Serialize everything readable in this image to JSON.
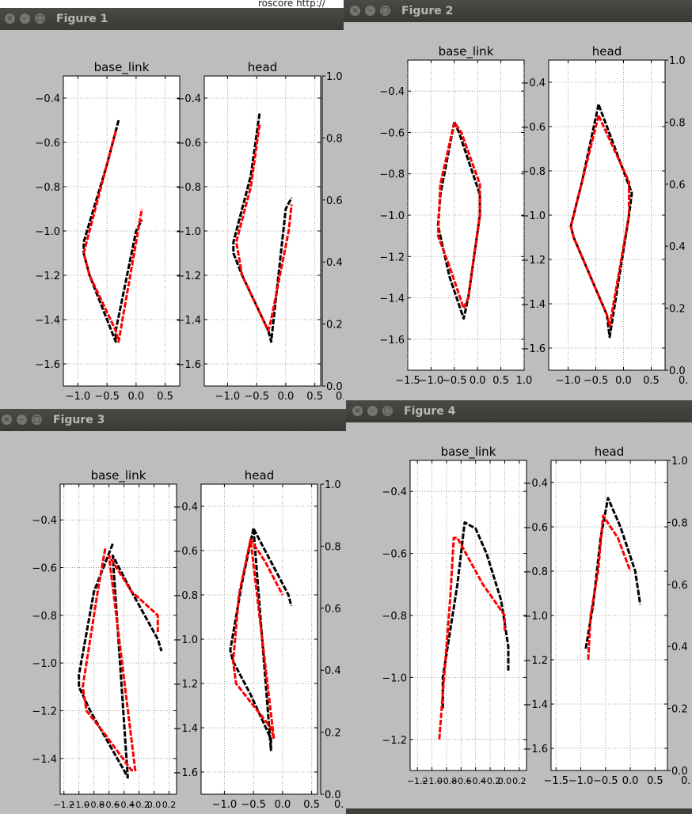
{
  "desktop": {
    "window_caption_fragment": "roscore http://"
  },
  "series_colors": {
    "measured": "#000000",
    "predicted": "#ff0000"
  },
  "icons": {
    "close": "close-icon",
    "minimize": "minimize-icon",
    "maximize": "maximize-icon"
  },
  "windows": [
    {
      "title": "Figure 1",
      "plots": [
        {
          "title": "base_link",
          "xticks": [
            "-1.0",
            "-0.5",
            "0.0",
            "0.5"
          ],
          "yticks": [
            "-0.4",
            "-0.6",
            "-0.8",
            "-1.0",
            "-1.2",
            "-1.4",
            "-1.6"
          ]
        },
        {
          "title": "head",
          "xticks": [
            "-1.0",
            "-0.5",
            "0.0",
            "0.5"
          ],
          "yticks": [
            "-0.4",
            "-0.6",
            "-0.8",
            "-1.0",
            "-1.2",
            "-1.4",
            "-1.6"
          ]
        }
      ],
      "right_axis_ticks": [
        "1.0",
        "0.8",
        "0.6",
        "0.4",
        "0.2",
        "0.0"
      ],
      "right_axis_xtick": "0."
    },
    {
      "title": "Figure 2",
      "plots": [
        {
          "title": "base_link",
          "xticks": [
            "-1.5",
            "-1.0",
            "-0.5",
            "0.0",
            "0.5",
            "1.0"
          ],
          "yticks": [
            "-0.4",
            "-0.6",
            "-0.8",
            "-1.0",
            "-1.2",
            "-1.4",
            "-1.6"
          ]
        },
        {
          "title": "head",
          "xticks": [
            "-1.0",
            "-0.5",
            "0.0",
            "0.5"
          ],
          "yticks": [
            "-0.4",
            "-0.6",
            "-0.8",
            "-1.0",
            "-1.2",
            "-1.4",
            "-1.6"
          ]
        }
      ],
      "right_axis_ticks": [
        "1.0",
        "0.8",
        "0.6",
        "0.4",
        "0.2",
        "0.0"
      ],
      "right_axis_xtick": "0."
    },
    {
      "title": "Figure 3",
      "plots": [
        {
          "title": "base_link",
          "xticks": [
            "-1.2",
            "-1.0",
            "-0.8",
            "-0.6",
            "-0.4",
            "-0.2",
            "0.0",
            "0.2"
          ],
          "yticks": [
            "-0.4",
            "-0.6",
            "-0.8",
            "-1.0",
            "-1.2",
            "-1.4"
          ]
        },
        {
          "title": "head",
          "xticks": [
            "-1.0",
            "-0.5",
            "0.0",
            "0.5"
          ],
          "yticks": [
            "-0.4",
            "-0.6",
            "-0.8",
            "-1.0",
            "-1.2",
            "-1.4",
            "-1.6"
          ]
        }
      ],
      "right_axis_ticks": [
        "1.0",
        "0.8",
        "0.6",
        "0.4",
        "0.2",
        "0.0"
      ],
      "right_axis_xtick": "0."
    },
    {
      "title": "Figure 4",
      "plots": [
        {
          "title": "base_link",
          "xticks": [
            "-1.2",
            "-1.0",
            "-0.8",
            "-0.6",
            "-0.4",
            "-0.2",
            "0.0",
            "0.2"
          ],
          "yticks": [
            "-0.4",
            "-0.6",
            "-0.8",
            "-1.0",
            "-1.2"
          ]
        },
        {
          "title": "head",
          "xticks": [
            "-1.5",
            "-1.0",
            "-0.5",
            "0.0",
            "0.5"
          ],
          "yticks": [
            "-0.4",
            "-0.6",
            "-0.8",
            "-1.0",
            "-1.2",
            "-1.4",
            "-1.6"
          ]
        }
      ],
      "right_axis_ticks": [
        "1.0",
        "0.8",
        "0.6",
        "0.4",
        "0.2",
        "0.0"
      ],
      "right_axis_xtick": "0."
    }
  ],
  "chart_data": [
    {
      "type": "line",
      "figure": "Figure 1",
      "title": "base_link",
      "xlim": [
        -1.25,
        0.75
      ],
      "ylim": [
        -1.7,
        -0.3
      ],
      "grid": true,
      "series": [
        {
          "color": "#000000",
          "x": [
            -0.3,
            -0.5,
            -0.9,
            -0.9,
            -0.8,
            -0.35,
            -0.35,
            0.0,
            0.1
          ],
          "y": [
            -0.5,
            -0.7,
            -1.05,
            -1.1,
            -1.2,
            -1.5,
            -1.45,
            -1.0,
            -0.95
          ]
        },
        {
          "color": "#ff0000",
          "x": [
            -0.35,
            -0.55,
            -0.9,
            -0.8,
            -0.35,
            -0.3,
            0.0,
            0.1
          ],
          "y": [
            -0.55,
            -0.75,
            -1.1,
            -1.2,
            -1.45,
            -1.5,
            -1.05,
            -0.9
          ]
        }
      ]
    },
    {
      "type": "line",
      "figure": "Figure 1",
      "title": "head",
      "xlim": [
        -1.4,
        0.6
      ],
      "ylim": [
        -1.7,
        -0.3
      ],
      "grid": true,
      "series": [
        {
          "color": "#000000",
          "x": [
            -0.45,
            -0.6,
            -0.9,
            -0.9,
            -0.75,
            -0.3,
            -0.25,
            0.0,
            0.1
          ],
          "y": [
            -0.47,
            -0.75,
            -1.05,
            -1.1,
            -1.2,
            -1.45,
            -1.5,
            -0.9,
            -0.85
          ]
        },
        {
          "color": "#ff0000",
          "x": [
            -0.45,
            -0.6,
            -0.85,
            -0.75,
            -0.3,
            -0.25,
            0.05,
            0.1
          ],
          "y": [
            -0.52,
            -0.8,
            -1.05,
            -1.2,
            -1.45,
            -1.4,
            -1.0,
            -0.88
          ]
        }
      ]
    },
    {
      "type": "line",
      "figure": "Figure 2",
      "title": "base_link",
      "xlim": [
        -1.5,
        1.0
      ],
      "ylim": [
        -1.75,
        -0.25
      ],
      "grid": true,
      "series": [
        {
          "color": "#000000",
          "x": [
            -0.5,
            -0.8,
            -0.85,
            -0.6,
            -0.3,
            -0.2,
            0.05,
            0.05,
            -0.4,
            -0.5
          ],
          "y": [
            -0.55,
            -0.9,
            -1.05,
            -1.3,
            -1.5,
            -1.4,
            -1.0,
            -0.9,
            -0.6,
            -0.55
          ]
        },
        {
          "color": "#ff0000",
          "x": [
            -0.5,
            -0.8,
            -0.85,
            -0.6,
            -0.3,
            -0.2,
            0.05,
            0.05,
            -0.35,
            -0.5
          ],
          "y": [
            -0.55,
            -0.85,
            -1.1,
            -1.25,
            -1.45,
            -1.4,
            -1.0,
            -0.85,
            -0.6,
            -0.55
          ]
        }
      ]
    },
    {
      "type": "line",
      "figure": "Figure 2",
      "title": "head",
      "xlim": [
        -1.35,
        0.75
      ],
      "ylim": [
        -1.7,
        -0.3
      ],
      "grid": true,
      "series": [
        {
          "color": "#000000",
          "x": [
            -0.45,
            -0.75,
            -0.95,
            -0.9,
            -0.3,
            -0.25,
            0.1,
            0.15,
            -0.45
          ],
          "y": [
            -0.5,
            -0.85,
            -1.05,
            -1.1,
            -1.45,
            -1.55,
            -1.0,
            -0.9,
            -0.5
          ]
        },
        {
          "color": "#ff0000",
          "x": [
            -0.45,
            -0.8,
            -0.95,
            -0.9,
            -0.3,
            -0.25,
            0.1,
            0.1,
            -0.45
          ],
          "y": [
            -0.55,
            -0.9,
            -1.05,
            -1.1,
            -1.45,
            -1.5,
            -1.0,
            -0.85,
            -0.55
          ]
        }
      ]
    },
    {
      "type": "line",
      "figure": "Figure 3",
      "title": "base_link",
      "xlim": [
        -1.25,
        0.3
      ],
      "ylim": [
        -1.55,
        -0.25
      ],
      "grid": true,
      "series": [
        {
          "color": "#000000",
          "x": [
            -0.55,
            -0.8,
            -1.0,
            -1.0,
            -0.85,
            -0.4,
            -0.35,
            -0.55,
            -0.3,
            0.05,
            0.1
          ],
          "y": [
            -0.5,
            -0.7,
            -1.05,
            -1.1,
            -1.2,
            -1.45,
            -1.48,
            -0.55,
            -0.7,
            -0.9,
            -0.95
          ]
        },
        {
          "color": "#ff0000",
          "x": [
            -0.65,
            -0.75,
            -0.95,
            -0.9,
            -0.65,
            -0.3,
            -0.25,
            -0.6,
            -0.3,
            0.05,
            0.05
          ],
          "y": [
            -0.52,
            -0.7,
            -1.1,
            -1.2,
            -1.3,
            -1.45,
            -1.45,
            -0.55,
            -0.7,
            -0.8,
            -0.87
          ]
        }
      ]
    },
    {
      "type": "line",
      "figure": "Figure 3",
      "title": "head",
      "xlim": [
        -1.4,
        0.6
      ],
      "ylim": [
        -1.7,
        -0.3
      ],
      "grid": true,
      "series": [
        {
          "color": "#000000",
          "x": [
            -0.5,
            -0.7,
            -0.9,
            -0.85,
            -0.55,
            -0.2,
            -0.2,
            -0.5,
            -0.2,
            0.1,
            0.15
          ],
          "y": [
            -0.5,
            -0.75,
            -1.05,
            -1.1,
            -1.25,
            -1.45,
            -1.5,
            -0.5,
            -0.65,
            -0.8,
            -0.85
          ]
        },
        {
          "color": "#ff0000",
          "x": [
            -0.55,
            -0.75,
            -0.85,
            -0.8,
            -0.5,
            -0.2,
            -0.15,
            -0.55,
            -0.3,
            0.0
          ],
          "y": [
            -0.55,
            -0.8,
            -1.1,
            -1.2,
            -1.3,
            -1.4,
            -1.45,
            -0.55,
            -0.65,
            -0.8
          ]
        }
      ]
    },
    {
      "type": "line",
      "figure": "Figure 4",
      "title": "base_link",
      "xlim": [
        -1.3,
        0.3
      ],
      "ylim": [
        -1.3,
        -0.3
      ],
      "grid": true,
      "series": [
        {
          "color": "#000000",
          "x": [
            -0.85,
            -0.85,
            -0.65,
            -0.55,
            -0.4,
            -0.25,
            -0.05,
            0.05,
            0.05
          ],
          "y": [
            -1.1,
            -1.0,
            -0.7,
            -0.5,
            -0.52,
            -0.6,
            -0.75,
            -0.9,
            -0.98
          ]
        },
        {
          "color": "#ff0000",
          "x": [
            -0.9,
            -0.85,
            -0.75,
            -0.7,
            -0.65,
            -0.3,
            0.0,
            0.0
          ],
          "y": [
            -1.2,
            -1.05,
            -0.75,
            -0.55,
            -0.55,
            -0.7,
            -0.8,
            -0.85
          ]
        }
      ]
    },
    {
      "type": "line",
      "figure": "Figure 4",
      "title": "head",
      "xlim": [
        -1.6,
        0.75
      ],
      "ylim": [
        -1.7,
        -0.3
      ],
      "grid": true,
      "series": [
        {
          "color": "#000000",
          "x": [
            -0.9,
            -0.75,
            -0.6,
            -0.45,
            -0.2,
            0.1,
            0.2
          ],
          "y": [
            -1.15,
            -0.95,
            -0.65,
            -0.47,
            -0.6,
            -0.8,
            -0.95
          ]
        },
        {
          "color": "#ff0000",
          "x": [
            -0.85,
            -0.8,
            -0.65,
            -0.55,
            -0.25,
            0.0
          ],
          "y": [
            -1.2,
            -1.0,
            -0.8,
            -0.55,
            -0.65,
            -0.8
          ]
        }
      ]
    }
  ]
}
